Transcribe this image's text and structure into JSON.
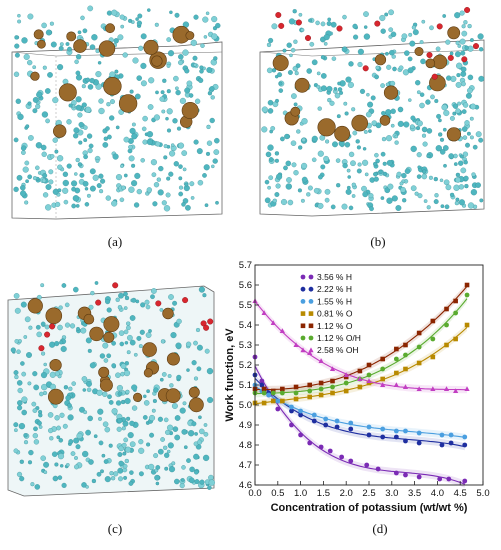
{
  "captions": [
    "(a)",
    "(b)",
    "(c)",
    "(d)"
  ],
  "chart_data": {
    "type": "scatter",
    "xlabel": "Concentration of potassium (wt/wt %)",
    "ylabel": "Work function, eV",
    "xlim": [
      0.0,
      5.0
    ],
    "ylim": [
      4.6,
      5.7
    ],
    "xticks": [
      "0.0",
      "0.5",
      "1.0",
      "1.5",
      "2.0",
      "2.5",
      "3.0",
      "3.5",
      "4.0",
      "4.5",
      "5.0"
    ],
    "yticks": [
      "4.6",
      "4.7",
      "4.8",
      "4.9",
      "5.0",
      "5.1",
      "5.2",
      "5.3",
      "5.4",
      "5.5",
      "5.6",
      "5.7"
    ],
    "legend_position": "top-left",
    "grid": false,
    "series": [
      {
        "name": "3.56 % H",
        "color": "#7b2bb5",
        "marker": "circle",
        "x": [
          0.0,
          0.15,
          0.3,
          0.5,
          0.8,
          1.0,
          1.2,
          1.45,
          1.65,
          1.9,
          2.1,
          2.45,
          2.7,
          3.1,
          3.3,
          3.6,
          4.05,
          4.25,
          4.6
        ],
        "y": [
          5.24,
          5.12,
          5.05,
          4.98,
          4.9,
          4.85,
          4.81,
          4.79,
          4.77,
          4.74,
          4.72,
          4.7,
          4.68,
          4.66,
          4.65,
          4.64,
          4.63,
          4.63,
          4.62
        ]
      },
      {
        "name": "2.22 % H",
        "color": "#1f2fa0",
        "marker": "circle",
        "x": [
          0.0,
          0.15,
          0.3,
          0.5,
          0.8,
          1.0,
          1.3,
          1.55,
          1.8,
          2.1,
          2.5,
          2.8,
          3.1,
          3.3,
          3.6,
          4.1,
          4.3,
          4.6
        ],
        "y": [
          5.15,
          5.1,
          5.06,
          5.02,
          4.97,
          4.95,
          4.92,
          4.9,
          4.89,
          4.88,
          4.85,
          4.84,
          4.84,
          4.82,
          4.81,
          4.8,
          4.81,
          4.8
        ]
      },
      {
        "name": "1.55 % H",
        "color": "#4a9fe0",
        "marker": "circle",
        "x": [
          0.0,
          0.15,
          0.3,
          0.5,
          0.8,
          1.0,
          1.3,
          1.55,
          1.8,
          2.1,
          2.5,
          2.8,
          3.1,
          3.3,
          3.6,
          4.1,
          4.3,
          4.6
        ],
        "y": [
          5.1,
          5.07,
          5.05,
          5.02,
          4.99,
          4.97,
          4.95,
          4.93,
          4.92,
          4.91,
          4.89,
          4.88,
          4.87,
          4.87,
          4.86,
          4.85,
          4.85,
          4.84
        ]
      },
      {
        "name": "0.81 % O",
        "color": "#b88a00",
        "marker": "square",
        "x": [
          0.0,
          0.2,
          0.4,
          0.6,
          0.9,
          1.2,
          1.45,
          1.7,
          2.0,
          2.3,
          2.5,
          2.8,
          3.1,
          3.3,
          3.6,
          3.9,
          4.2,
          4.4,
          4.65
        ],
        "y": [
          5.01,
          5.01,
          5.02,
          5.02,
          5.03,
          5.04,
          5.05,
          5.06,
          5.07,
          5.09,
          5.11,
          5.13,
          5.16,
          5.18,
          5.21,
          5.24,
          5.3,
          5.33,
          5.4
        ]
      },
      {
        "name": "1.12 % O",
        "color": "#8b2500",
        "marker": "square",
        "x": [
          0.0,
          0.2,
          0.4,
          0.6,
          0.9,
          1.2,
          1.45,
          1.7,
          2.0,
          2.3,
          2.5,
          2.8,
          3.1,
          3.3,
          3.6,
          3.9,
          4.2,
          4.4,
          4.65
        ],
        "y": [
          5.08,
          5.08,
          5.07,
          5.08,
          5.09,
          5.1,
          5.11,
          5.12,
          5.14,
          5.17,
          5.2,
          5.23,
          5.28,
          5.3,
          5.36,
          5.42,
          5.48,
          5.52,
          5.6
        ]
      },
      {
        "name": "1.12 % O/H",
        "color": "#5aab2f",
        "marker": "circle",
        "x": [
          0.0,
          0.2,
          0.4,
          0.6,
          0.9,
          1.2,
          1.45,
          1.7,
          2.0,
          2.3,
          2.5,
          2.8,
          3.1,
          3.3,
          3.6,
          3.9,
          4.2,
          4.4,
          4.65
        ],
        "y": [
          5.06,
          5.06,
          5.06,
          5.06,
          5.06,
          5.07,
          5.08,
          5.09,
          5.11,
          5.13,
          5.15,
          5.18,
          5.23,
          5.25,
          5.29,
          5.33,
          5.4,
          5.46,
          5.55
        ]
      },
      {
        "name": "2.58 % OH",
        "color": "#c23ec2",
        "marker": "triangle",
        "x": [
          0.0,
          0.2,
          0.4,
          0.6,
          0.9,
          1.2,
          1.45,
          1.7,
          2.0,
          2.3,
          2.5,
          2.8,
          3.1,
          3.3,
          3.6,
          3.9,
          4.2,
          4.4,
          4.65
        ],
        "y": [
          5.52,
          5.46,
          5.41,
          5.37,
          5.3,
          5.26,
          5.22,
          5.18,
          5.15,
          5.13,
          5.12,
          5.1,
          5.1,
          5.09,
          5.08,
          5.08,
          5.08,
          5.07,
          5.08
        ]
      }
    ]
  }
}
